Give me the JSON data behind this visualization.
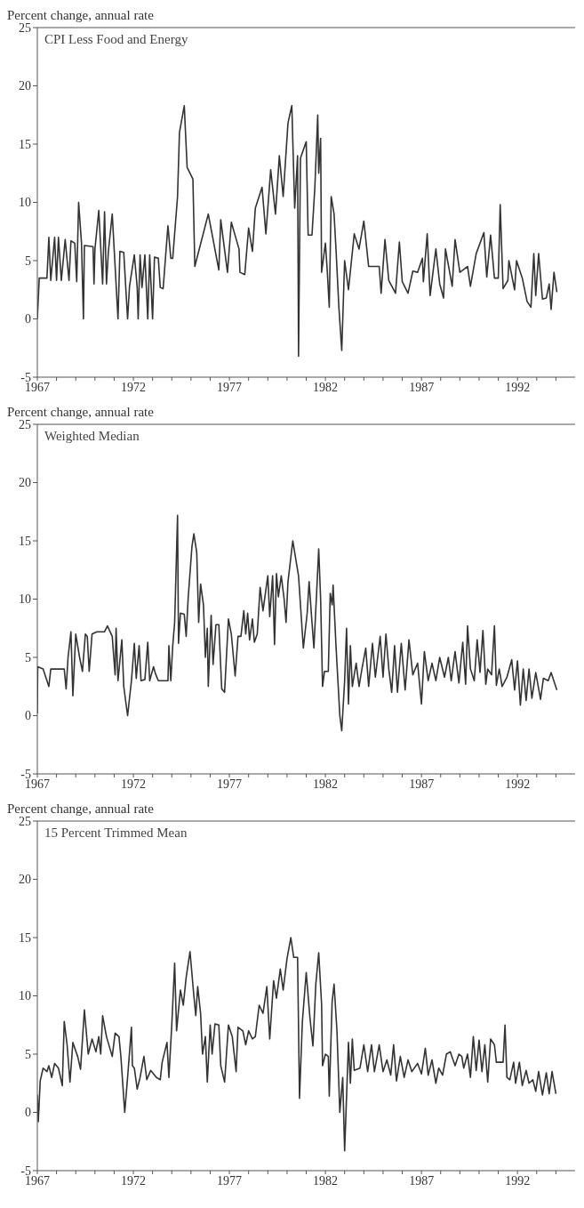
{
  "chart_data": [
    {
      "type": "line",
      "title": "CPI Less Food and Energy",
      "ylabel": "Percent change, annual rate",
      "color": "#333333",
      "x": [
        1967.0,
        1967.1,
        1967.5,
        1967.6,
        1967.7,
        1967.9,
        1968.0,
        1968.1,
        1968.25,
        1968.45,
        1968.65,
        1968.75,
        1968.95,
        1969.05,
        1969.15,
        1969.3,
        1969.4,
        1969.45,
        1969.9,
        1969.95,
        1970.0,
        1970.2,
        1970.4,
        1970.5,
        1970.6,
        1970.7,
        1970.9,
        1971.1,
        1971.2,
        1971.3,
        1971.5,
        1971.6,
        1971.7,
        1971.8,
        1972.05,
        1972.2,
        1972.25,
        1972.35,
        1972.45,
        1972.6,
        1972.75,
        1972.85,
        1973.0,
        1973.1,
        1973.3,
        1973.4,
        1973.55,
        1973.8,
        1973.95,
        1974.05,
        1974.3,
        1974.4,
        1974.65,
        1974.8,
        1975.1,
        1975.2,
        1975.9,
        1976.45,
        1976.55,
        1976.9,
        1977.1,
        1977.5,
        1977.55,
        1977.8,
        1978.0,
        1978.2,
        1978.35,
        1978.7,
        1978.9,
        1979.15,
        1979.4,
        1979.6,
        1979.8,
        1980.05,
        1980.25,
        1980.4,
        1980.55,
        1980.6,
        1980.7,
        1981.0,
        1981.1,
        1981.3,
        1981.45,
        1981.6,
        1981.65,
        1981.75,
        1981.8,
        1982.0,
        1982.1,
        1982.2,
        1982.3,
        1982.45,
        1982.55,
        1982.7,
        1982.85,
        1983.0,
        1983.2,
        1983.5,
        1983.75,
        1984.0,
        1984.25,
        1984.8,
        1984.9,
        1985.1,
        1985.3,
        1985.65,
        1985.85,
        1986.0,
        1986.3,
        1986.55,
        1986.8,
        1987.05,
        1987.1,
        1987.3,
        1987.45,
        1987.75,
        1987.95,
        1988.15,
        1988.25,
        1988.6,
        1988.75,
        1989.0,
        1989.4,
        1989.55,
        1989.85,
        1990.25,
        1990.4,
        1990.6,
        1990.8,
        1991.0,
        1991.1,
        1991.25,
        1991.5,
        1991.55,
        1991.85,
        1991.95,
        1992.25,
        1992.5,
        1992.7,
        1992.85,
        1992.95,
        1993.1,
        1993.3,
        1993.5,
        1993.65,
        1993.75,
        1993.9,
        1994.05
      ],
      "values": [
        0,
        3.5,
        3.5,
        7,
        3.3,
        7,
        3.3,
        7,
        3.3,
        6.8,
        3.3,
        6.7,
        6.5,
        3.2,
        10,
        6.5,
        0,
        6.3,
        6.2,
        3,
        6,
        9.3,
        3,
        9.2,
        3,
        5.8,
        9,
        3,
        0,
        5.8,
        5.7,
        2.8,
        0,
        2.8,
        5.5,
        2.7,
        0,
        5.5,
        2.7,
        5.5,
        0,
        5.5,
        0,
        5.3,
        5.2,
        2.7,
        2.6,
        8,
        5.2,
        5.2,
        10.5,
        16,
        18.3,
        13,
        12,
        4.5,
        9,
        4.2,
        8.5,
        4,
        8.3,
        6,
        4,
        3.8,
        7.8,
        5.8,
        9.5,
        11.3,
        7.3,
        12.8,
        9,
        14,
        10.5,
        16.8,
        18.3,
        9.5,
        14,
        -3.2,
        13.8,
        15.2,
        7.2,
        7.2,
        11.3,
        17.5,
        12.5,
        15.5,
        4,
        6.5,
        4,
        1,
        10.5,
        9,
        6,
        1,
        -2.7,
        5,
        2.5,
        7.3,
        6,
        8.4,
        4.5,
        4.5,
        2.2,
        6.8,
        3.3,
        2.2,
        6.6,
        3.2,
        2.2,
        4.1,
        4,
        5.2,
        3.2,
        7.3,
        2,
        6,
        3,
        1.8,
        6,
        2.8,
        6.8,
        4,
        4.5,
        2.8,
        5.6,
        7.4,
        3.6,
        7.2,
        3.5,
        3.5,
        9.8,
        2.6,
        3.3,
        5,
        2.5,
        5,
        3.5,
        1.5,
        1,
        5.6,
        2,
        5.6,
        1.7,
        1.8,
        3,
        0.8,
        4,
        2.3
      ],
      "xlim": [
        1967,
        1995
      ],
      "ylim": [
        -5,
        25
      ],
      "yticks": [
        -5,
        0,
        5,
        10,
        15,
        20,
        25
      ],
      "xticks": [
        {
          "value": 1967,
          "label": "1967"
        },
        {
          "value": 1968,
          "label": null
        },
        {
          "value": 1969,
          "label": null
        },
        {
          "value": 1970,
          "label": null
        },
        {
          "value": 1971,
          "label": null
        },
        {
          "value": 1972,
          "label": "1972"
        },
        {
          "value": 1973,
          "label": null
        },
        {
          "value": 1974,
          "label": null
        },
        {
          "value": 1975,
          "label": null
        },
        {
          "value": 1976,
          "label": null
        },
        {
          "value": 1977,
          "label": "1977"
        },
        {
          "value": 1978,
          "label": null
        },
        {
          "value": 1979,
          "label": null
        },
        {
          "value": 1980,
          "label": null
        },
        {
          "value": 1981,
          "label": null
        },
        {
          "value": 1982,
          "label": "1982"
        },
        {
          "value": 1983,
          "label": null
        },
        {
          "value": 1984,
          "label": null
        },
        {
          "value": 1985,
          "label": null
        },
        {
          "value": 1986,
          "label": null
        },
        {
          "value": 1987,
          "label": "1987"
        },
        {
          "value": 1988,
          "label": null
        },
        {
          "value": 1989,
          "label": null
        },
        {
          "value": 1990,
          "label": null
        },
        {
          "value": 1991,
          "label": null
        },
        {
          "value": 1992,
          "label": "1992"
        },
        {
          "value": 1993,
          "label": null
        },
        {
          "value": 1994,
          "label": null
        }
      ]
    },
    {
      "type": "line",
      "title": "Weighted Median",
      "ylabel": "Percent change, annual rate",
      "color": "#333333",
      "x": [
        1967.0,
        1967.02,
        1967.3,
        1967.6,
        1967.7,
        1968.4,
        1968.5,
        1968.6,
        1968.75,
        1968.85,
        1969.0,
        1969.2,
        1969.35,
        1969.5,
        1969.6,
        1969.7,
        1969.85,
        1970.1,
        1970.5,
        1970.65,
        1970.9,
        1971.05,
        1971.1,
        1971.2,
        1971.4,
        1971.5,
        1971.7,
        1971.9,
        1972.05,
        1972.15,
        1972.3,
        1972.4,
        1972.6,
        1972.75,
        1972.85,
        1973.05,
        1973.15,
        1973.3,
        1973.8,
        1973.85,
        1973.95,
        1974.05,
        1974.15,
        1974.3,
        1974.35,
        1974.45,
        1974.65,
        1974.75,
        1974.85,
        1975.05,
        1975.15,
        1975.3,
        1975.4,
        1975.5,
        1975.65,
        1975.75,
        1975.85,
        1975.9,
        1976.05,
        1976.15,
        1976.3,
        1976.45,
        1976.6,
        1976.75,
        1976.95,
        1977.1,
        1977.3,
        1977.45,
        1977.6,
        1977.75,
        1977.85,
        1977.95,
        1978.05,
        1978.2,
        1978.3,
        1978.45,
        1978.6,
        1978.75,
        1978.85,
        1979.0,
        1979.1,
        1979.25,
        1979.35,
        1979.45,
        1979.55,
        1979.7,
        1979.85,
        1979.95,
        1980.05,
        1980.3,
        1980.6,
        1980.85,
        1981.05,
        1981.15,
        1981.3,
        1981.4,
        1981.55,
        1981.65,
        1981.75,
        1981.85,
        1981.95,
        1982.15,
        1982.25,
        1982.35,
        1982.4,
        1982.55,
        1982.75,
        1982.85,
        1983.0,
        1983.1,
        1983.2,
        1983.3,
        1983.4,
        1983.6,
        1983.75,
        1983.9,
        1984.1,
        1984.25,
        1984.45,
        1984.6,
        1984.85,
        1985.0,
        1985.15,
        1985.3,
        1985.45,
        1985.6,
        1985.75,
        1985.95,
        1986.15,
        1986.35,
        1986.55,
        1986.8,
        1987.0,
        1987.15,
        1987.35,
        1987.55,
        1987.75,
        1987.95,
        1988.2,
        1988.4,
        1988.55,
        1988.75,
        1988.95,
        1989.15,
        1989.3,
        1989.4,
        1989.55,
        1989.75,
        1989.9,
        1990.05,
        1990.2,
        1990.35,
        1990.45,
        1990.65,
        1990.8,
        1990.9,
        1991.05,
        1991.2,
        1991.45,
        1991.7,
        1991.85,
        1992.0,
        1992.15,
        1992.3,
        1992.45,
        1992.6,
        1992.75,
        1992.95,
        1993.2,
        1993.35,
        1993.6,
        1993.75,
        1994.05
      ],
      "values": [
        0.2,
        4.2,
        4,
        2.5,
        4,
        4,
        2.3,
        5,
        7.2,
        1.7,
        7,
        5,
        3.8,
        7,
        6.8,
        3.8,
        7,
        7.2,
        7.2,
        7.7,
        6.8,
        3.5,
        7.5,
        3,
        6.5,
        2.5,
        0,
        3,
        6.2,
        3.2,
        6,
        3,
        3.1,
        6.3,
        3,
        4.2,
        3.6,
        3,
        3,
        6,
        3,
        6,
        8,
        17.2,
        6.2,
        8.8,
        8.7,
        6.8,
        10,
        14.5,
        15.6,
        14,
        8,
        11.3,
        9.5,
        5,
        7.5,
        2.5,
        8.6,
        4.4,
        7.8,
        7.8,
        2.3,
        2,
        8.3,
        7,
        3.4,
        6.8,
        6.8,
        9,
        7,
        8.8,
        6.5,
        8.3,
        6.3,
        7,
        11,
        9,
        10.2,
        12,
        8.5,
        12,
        6.1,
        12.2,
        10.2,
        12,
        10,
        8,
        11.5,
        15,
        12,
        5.8,
        8.8,
        11.5,
        8,
        5.8,
        10.8,
        14.3,
        10,
        2.5,
        3.8,
        3.8,
        10.5,
        9.5,
        11.2,
        6,
        0,
        -1.3,
        3,
        7.5,
        1,
        6,
        2.5,
        4.5,
        2.5,
        4,
        5.8,
        2.5,
        6.2,
        3.3,
        6.8,
        3.3,
        7,
        4,
        2,
        6,
        2,
        6.2,
        2.2,
        6.5,
        3.5,
        4.5,
        1,
        5.5,
        3,
        4.5,
        3,
        5,
        3.3,
        5,
        3,
        5.5,
        2.8,
        6.3,
        2.7,
        7.7,
        4,
        3,
        6.5,
        3.7,
        7.3,
        2.7,
        4,
        3.5,
        7.7,
        2.6,
        4,
        2.5,
        3.3,
        4.8,
        2.2,
        4.7,
        0.9,
        4,
        1.3,
        4,
        1.5,
        3.7,
        1.4,
        3.2,
        3,
        3.7,
        2.2
      ],
      "xlim": [
        1967,
        1995
      ],
      "ylim": [
        -5,
        25
      ],
      "yticks": [
        -5,
        0,
        5,
        10,
        15,
        20,
        25
      ],
      "xticks": [
        {
          "value": 1967,
          "label": "1967"
        },
        {
          "value": 1968,
          "label": null
        },
        {
          "value": 1969,
          "label": null
        },
        {
          "value": 1970,
          "label": null
        },
        {
          "value": 1971,
          "label": null
        },
        {
          "value": 1972,
          "label": "1972"
        },
        {
          "value": 1973,
          "label": null
        },
        {
          "value": 1974,
          "label": null
        },
        {
          "value": 1975,
          "label": null
        },
        {
          "value": 1976,
          "label": null
        },
        {
          "value": 1977,
          "label": "1977"
        },
        {
          "value": 1978,
          "label": null
        },
        {
          "value": 1979,
          "label": null
        },
        {
          "value": 1980,
          "label": null
        },
        {
          "value": 1981,
          "label": null
        },
        {
          "value": 1982,
          "label": "1982"
        },
        {
          "value": 1983,
          "label": null
        },
        {
          "value": 1984,
          "label": null
        },
        {
          "value": 1985,
          "label": null
        },
        {
          "value": 1986,
          "label": null
        },
        {
          "value": 1987,
          "label": "1987"
        },
        {
          "value": 1988,
          "label": null
        },
        {
          "value": 1989,
          "label": null
        },
        {
          "value": 1990,
          "label": null
        },
        {
          "value": 1991,
          "label": null
        },
        {
          "value": 1992,
          "label": "1992"
        },
        {
          "value": 1993,
          "label": null
        },
        {
          "value": 1994,
          "label": null
        }
      ]
    },
    {
      "type": "line",
      "title": "15 Percent Trimmed Mean",
      "ylabel": "Percent change, annual rate",
      "color": "#333333",
      "x": [
        1967.0,
        1967.05,
        1967.15,
        1967.3,
        1967.5,
        1967.6,
        1967.75,
        1967.9,
        1968.1,
        1968.3,
        1968.4,
        1968.55,
        1968.7,
        1968.85,
        1969.1,
        1969.25,
        1969.45,
        1969.65,
        1969.85,
        1970.05,
        1970.2,
        1970.3,
        1970.4,
        1970.6,
        1970.9,
        1971.05,
        1971.25,
        1971.35,
        1971.55,
        1971.7,
        1971.9,
        1971.95,
        1972.05,
        1972.2,
        1972.35,
        1972.55,
        1972.7,
        1972.9,
        1973.2,
        1973.4,
        1973.5,
        1973.75,
        1973.85,
        1974.0,
        1974.15,
        1974.25,
        1974.45,
        1974.6,
        1974.75,
        1974.95,
        1975.15,
        1975.25,
        1975.35,
        1975.5,
        1975.6,
        1975.75,
        1975.85,
        1976.0,
        1976.1,
        1976.25,
        1976.45,
        1976.55,
        1976.75,
        1976.95,
        1977.15,
        1977.35,
        1977.45,
        1977.7,
        1977.85,
        1978.0,
        1978.2,
        1978.35,
        1978.55,
        1978.75,
        1978.95,
        1979.1,
        1979.3,
        1979.45,
        1979.65,
        1979.8,
        1980.0,
        1980.2,
        1980.35,
        1980.55,
        1980.65,
        1980.8,
        1981.0,
        1981.2,
        1981.35,
        1981.5,
        1981.65,
        1981.8,
        1981.85,
        1982.0,
        1982.15,
        1982.2,
        1982.35,
        1982.45,
        1982.6,
        1982.75,
        1982.9,
        1983.0,
        1983.2,
        1983.3,
        1983.4,
        1983.5,
        1983.8,
        1984.0,
        1984.2,
        1984.4,
        1984.55,
        1984.8,
        1985.0,
        1985.2,
        1985.4,
        1985.55,
        1985.7,
        1985.9,
        1986.1,
        1986.3,
        1986.5,
        1986.8,
        1987.0,
        1987.2,
        1987.35,
        1987.55,
        1987.75,
        1987.9,
        1988.1,
        1988.3,
        1988.5,
        1988.75,
        1988.95,
        1989.1,
        1989.2,
        1989.4,
        1989.55,
        1989.7,
        1989.85,
        1990.0,
        1990.15,
        1990.3,
        1990.45,
        1990.6,
        1990.8,
        1990.9,
        1991.25,
        1991.35,
        1991.45,
        1991.6,
        1991.8,
        1991.9,
        1992.1,
        1992.25,
        1992.45,
        1992.6,
        1992.8,
        1992.95,
        1993.1,
        1993.3,
        1993.5,
        1993.65,
        1993.8,
        1994.0
      ],
      "values": [
        1.5,
        -0.8,
        2.7,
        3.8,
        3.5,
        4,
        3,
        4.2,
        3.8,
        2.3,
        7.8,
        5.8,
        2.6,
        6,
        4.8,
        3.7,
        8.8,
        5,
        6.3,
        5.2,
        6.5,
        5,
        8.3,
        6.5,
        4.8,
        6.8,
        6.5,
        4.8,
        0,
        3,
        7.3,
        4,
        3.8,
        2,
        3,
        4.8,
        2.8,
        3.6,
        3,
        2.8,
        4.3,
        6,
        3,
        7.5,
        12.8,
        7,
        10.5,
        9.2,
        11.6,
        13.8,
        10,
        8.3,
        10.8,
        8.5,
        5,
        6.5,
        2.6,
        7.5,
        5,
        7.6,
        7.5,
        4,
        2.6,
        7.5,
        6.5,
        3.5,
        7.3,
        7,
        5.8,
        7,
        6.3,
        6.5,
        9.2,
        8.5,
        10.8,
        6.3,
        11.3,
        9.8,
        12.3,
        10.5,
        13.2,
        15,
        13.3,
        13.3,
        1.2,
        7.8,
        12,
        8,
        5.7,
        11,
        13.7,
        9.3,
        4,
        5,
        4.8,
        1.4,
        9.5,
        11,
        7,
        0,
        3,
        -3.3,
        6,
        2.5,
        6.3,
        3.6,
        3.8,
        5.8,
        3.5,
        5.8,
        3.5,
        5.8,
        3.5,
        4.5,
        3.2,
        5.8,
        2.7,
        4.8,
        3,
        4.5,
        3.5,
        4.2,
        3.3,
        5.5,
        3.2,
        4.5,
        2.5,
        3.8,
        3.2,
        5,
        5.2,
        4,
        5,
        4.8,
        3.8,
        5,
        3,
        6.5,
        3.6,
        6.2,
        3.5,
        5.8,
        2.6,
        6.3,
        5.8,
        4.3,
        4.3,
        7.5,
        3,
        2.8,
        4.3,
        2.5,
        4.3,
        2.3,
        3.6,
        2.5,
        2.8,
        1.8,
        3.5,
        1.5,
        3.4,
        1.6,
        3.5,
        1.6
      ],
      "xlim": [
        1967,
        1995
      ],
      "ylim": [
        -5,
        25
      ],
      "yticks": [
        -5,
        0,
        5,
        10,
        15,
        20,
        25
      ],
      "xticks": [
        {
          "value": 1967,
          "label": "1967"
        },
        {
          "value": 1968,
          "label": null
        },
        {
          "value": 1969,
          "label": null
        },
        {
          "value": 1970,
          "label": null
        },
        {
          "value": 1971,
          "label": null
        },
        {
          "value": 1972,
          "label": "1972"
        },
        {
          "value": 1973,
          "label": null
        },
        {
          "value": 1974,
          "label": null
        },
        {
          "value": 1975,
          "label": null
        },
        {
          "value": 1976,
          "label": null
        },
        {
          "value": 1977,
          "label": "1977"
        },
        {
          "value": 1978,
          "label": null
        },
        {
          "value": 1979,
          "label": null
        },
        {
          "value": 1980,
          "label": null
        },
        {
          "value": 1981,
          "label": null
        },
        {
          "value": 1982,
          "label": "1982"
        },
        {
          "value": 1983,
          "label": null
        },
        {
          "value": 1984,
          "label": null
        },
        {
          "value": 1985,
          "label": null
        },
        {
          "value": 1986,
          "label": null
        },
        {
          "value": 1987,
          "label": "1987"
        },
        {
          "value": 1988,
          "label": null
        },
        {
          "value": 1989,
          "label": null
        },
        {
          "value": 1990,
          "label": null
        },
        {
          "value": 1991,
          "label": null
        },
        {
          "value": 1992,
          "label": "1992"
        },
        {
          "value": 1993,
          "label": null
        },
        {
          "value": 1994,
          "label": null
        }
      ]
    }
  ]
}
